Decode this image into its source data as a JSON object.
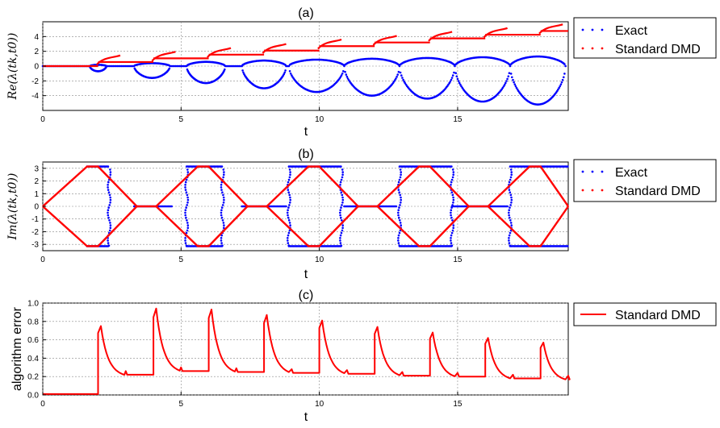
{
  "chart_data": [
    {
      "type": "scatter",
      "title": "(a)",
      "xlabel": "t",
      "ylabel": "Re(λ(tk,t0))",
      "xlim": [
        0,
        19
      ],
      "ylim": [
        -6,
        6
      ],
      "xticks": [
        0,
        5,
        10,
        15
      ],
      "yticks": [
        4,
        2,
        0,
        -2,
        -4
      ],
      "grid": true,
      "legend": "outside-right",
      "series": [
        {
          "name": "Exact",
          "color": "#0000ff",
          "description_pattern": "eigenvalue branches forming growing loops after each transition",
          "loops": [
            {
              "t0": 1.7,
              "t1": 2.3,
              "amp": 0.7
            },
            {
              "t0": 3.3,
              "t1": 4.6,
              "amp": 1.6
            },
            {
              "t0": 5.2,
              "t1": 6.6,
              "amp": 2.3
            },
            {
              "t0": 7.2,
              "t1": 8.8,
              "amp": 3.0
            },
            {
              "t0": 8.9,
              "t1": 10.9,
              "amp": 3.5
            },
            {
              "t0": 10.9,
              "t1": 12.9,
              "amp": 4.0
            },
            {
              "t0": 12.9,
              "t1": 14.9,
              "amp": 4.4
            },
            {
              "t0": 14.9,
              "t1": 16.9,
              "amp": 4.8
            },
            {
              "t0": 16.9,
              "t1": 18.9,
              "amp": 5.2
            }
          ]
        },
        {
          "name": "Standard DMD",
          "color": "#ff0000",
          "steps": [
            {
              "t0": 0,
              "t1": 2.0,
              "y": 0.0
            },
            {
              "t0": 2.0,
              "t1": 4.0,
              "y": 0.55
            },
            {
              "t0": 4.0,
              "t1": 6.0,
              "y": 1.05
            },
            {
              "t0": 6.0,
              "t1": 8.0,
              "y": 1.55
            },
            {
              "t0": 8.0,
              "t1": 10.0,
              "y": 2.1
            },
            {
              "t0": 10.0,
              "t1": 12.0,
              "y": 2.7
            },
            {
              "t0": 12.0,
              "t1": 14.0,
              "y": 3.2
            },
            {
              "t0": 14.0,
              "t1": 16.0,
              "y": 3.75
            },
            {
              "t0": 16.0,
              "t1": 18.0,
              "y": 4.25
            },
            {
              "t0": 18.0,
              "t1": 19.0,
              "y": 4.75
            }
          ]
        }
      ]
    },
    {
      "type": "scatter",
      "title": "(b)",
      "xlabel": "t",
      "ylabel": "Im(λ(tk,t0))",
      "xlim": [
        0,
        19
      ],
      "ylim": [
        -3.5,
        3.5
      ],
      "xticks": [
        0,
        5,
        10,
        15
      ],
      "yticks": [
        3,
        2,
        1,
        0,
        -1,
        -2,
        -3
      ],
      "grid": true,
      "legend": "outside-right",
      "series": [
        {
          "name": "Exact",
          "color": "#0000ff",
          "segments": [
            {
              "t0": 1.6,
              "t1": 2.4,
              "level": "pi"
            },
            {
              "t0": 5.2,
              "t1": 6.5,
              "level": "pi"
            },
            {
              "t0": 8.9,
              "t1": 10.8,
              "level": "pi"
            },
            {
              "t0": 12.9,
              "t1": 14.8,
              "level": "pi"
            },
            {
              "t0": 16.9,
              "t1": 19.0,
              "level": "pi"
            },
            {
              "t0": 3.3,
              "t1": 4.7,
              "level": "zero"
            },
            {
              "t0": 7.2,
              "t1": 8.8,
              "level": "zero"
            },
            {
              "t0": 10.9,
              "t1": 12.8,
              "level": "zero"
            },
            {
              "t0": 14.8,
              "t1": 16.8,
              "level": "zero"
            }
          ]
        },
        {
          "name": "Standard DMD",
          "color": "#ff0000",
          "peaks_at": [
            1.8,
            5.8,
            9.8,
            13.8,
            17.8
          ],
          "zero_runs": [
            [
              3.4,
              4.1
            ],
            [
              7.4,
              8.1
            ],
            [
              11.4,
              12.1
            ],
            [
              15.4,
              16.1
            ]
          ]
        }
      ]
    },
    {
      "type": "line",
      "title": "(c)",
      "xlabel": "t",
      "ylabel": "algorithm error",
      "xlim": [
        0,
        19
      ],
      "ylim": [
        0,
        1.0
      ],
      "xticks": [
        0,
        5,
        10,
        15
      ],
      "yticks": [
        1.0,
        0.8,
        0.6,
        0.4,
        0.2,
        0.0
      ],
      "grid": true,
      "legend": "outside-right",
      "series": [
        {
          "name": "Standard DMD",
          "color": "#ff0000",
          "jumps": [
            {
              "t": 2.0,
              "peak": 0.75,
              "base": 0.22
            },
            {
              "t": 4.0,
              "peak": 0.94,
              "base": 0.26
            },
            {
              "t": 6.0,
              "peak": 0.93,
              "base": 0.25
            },
            {
              "t": 8.0,
              "peak": 0.87,
              "base": 0.24
            },
            {
              "t": 10.0,
              "peak": 0.81,
              "base": 0.23
            },
            {
              "t": 12.0,
              "peak": 0.74,
              "base": 0.21
            },
            {
              "t": 14.0,
              "peak": 0.68,
              "base": 0.2
            },
            {
              "t": 16.0,
              "peak": 0.62,
              "base": 0.18
            },
            {
              "t": 18.0,
              "peak": 0.57,
              "base": 0.17
            }
          ],
          "initial": 0.01
        }
      ]
    }
  ]
}
